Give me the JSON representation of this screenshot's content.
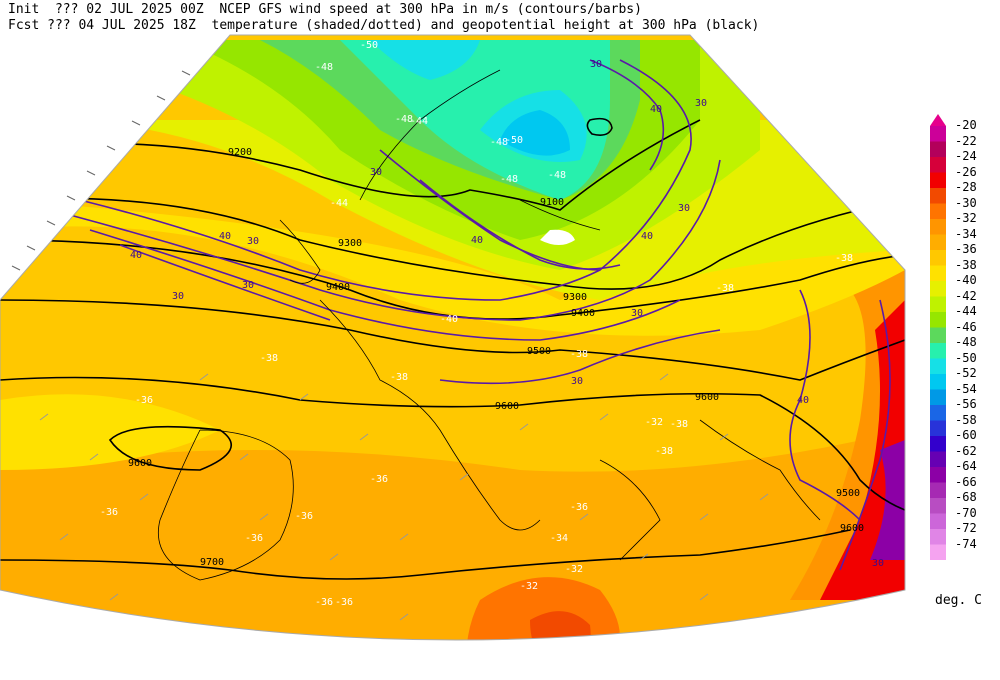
{
  "header": {
    "init_line": "Init  ??? 02 JUL 2025 00Z  NCEP GFS wind speed at 300 hPa in m/s (contours/barbs)",
    "fcst_line": "Fcst ??? 04 JUL 2025 18Z  temperature (shaded/dotted) and geopotential height at 300 hPa (black)"
  },
  "legend": {
    "units": "deg. C",
    "levels": [
      "-20",
      "-22",
      "-24",
      "-26",
      "-28",
      "-30",
      "-32",
      "-34",
      "-36",
      "-38",
      "-40",
      "-42",
      "-44",
      "-46",
      "-48",
      "-50",
      "-52",
      "-54",
      "-56",
      "-58",
      "-60",
      "-62",
      "-64",
      "-66",
      "-68",
      "-70",
      "-72",
      "-74"
    ],
    "colors": [
      "#cc0099",
      "#b3005b",
      "#d6003a",
      "#f20000",
      "#f24a00",
      "#ff7400",
      "#ff9500",
      "#ffad00",
      "#ffc800",
      "#ffe100",
      "#e6f000",
      "#bff200",
      "#96e600",
      "#5cd95c",
      "#27f0ad",
      "#16e0e6",
      "#00c8f0",
      "#0099e6",
      "#1a66e6",
      "#2833d9",
      "#3300cc",
      "#6600b3",
      "#8c00a6",
      "#a62ab3",
      "#b84dc2",
      "#cc66d9",
      "#e085e6",
      "#f5a3f0"
    ]
  },
  "map": {
    "temperature_labels": [
      "-50",
      "-48",
      "-48",
      "-50",
      "-48",
      "-48",
      "-48",
      "-44",
      "-44",
      "-40",
      "-38",
      "-38",
      "-38",
      "-38",
      "-38",
      "-38",
      "-36",
      "-36",
      "-36",
      "-36",
      "-36",
      "-36",
      "-36",
      "-34",
      "-32",
      "-32",
      "-36",
      "-36",
      "-38",
      "-32"
    ],
    "height_labels": [
      "9200",
      "9300",
      "9400",
      "9100",
      "9300",
      "9400",
      "9500",
      "9600",
      "9600",
      "9600",
      "9700",
      "9500",
      "9600"
    ],
    "wind_labels": [
      "30",
      "30",
      "30",
      "40",
      "30",
      "40",
      "40",
      "30",
      "30",
      "40",
      "30",
      "30",
      "40",
      "30",
      "40",
      "30"
    ]
  }
}
